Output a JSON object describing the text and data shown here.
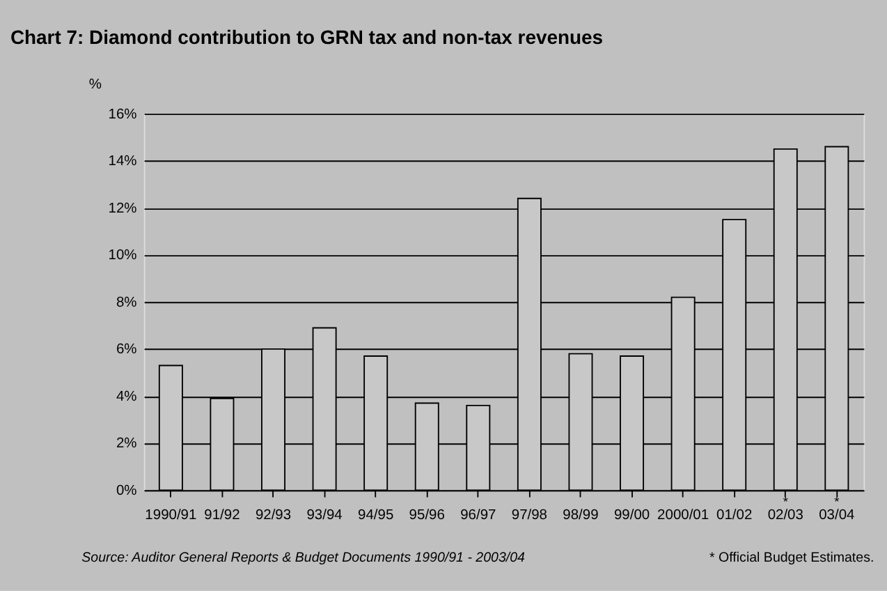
{
  "chart_data": {
    "type": "bar",
    "title": "Chart 7: Diamond contribution to GRN tax and non-tax revenues",
    "ylabel": "%",
    "categories": [
      "1990/91",
      "91/92",
      "92/93",
      "93/94",
      "94/95",
      "95/96",
      "96/97",
      "97/98",
      "98/99",
      "99/00",
      "2000/01",
      "01/02",
      "02/03",
      "03/04"
    ],
    "values": [
      5.3,
      3.9,
      6.0,
      6.9,
      5.7,
      3.7,
      3.6,
      12.4,
      5.8,
      5.7,
      8.2,
      11.5,
      14.5,
      14.6
    ],
    "color": "#c8c8c8",
    "ylim": [
      0,
      16
    ],
    "yticks": [
      {
        "value": 0,
        "label": "0%"
      },
      {
        "value": 2,
        "label": "2%"
      },
      {
        "value": 4,
        "label": "4%"
      },
      {
        "value": 6,
        "label": "6%"
      },
      {
        "value": 8,
        "label": "8%"
      },
      {
        "value": 10,
        "label": "10%"
      },
      {
        "value": 12,
        "label": "12%"
      },
      {
        "value": 14,
        "label": "14%"
      },
      {
        "value": 16,
        "label": "16%"
      }
    ],
    "grid": "y",
    "annotations": [
      "*",
      "*",
      "Source: Auditor General Reports & Budget Documents 1990/91 - 2003/04",
      "* Official Budget Estimates."
    ]
  }
}
